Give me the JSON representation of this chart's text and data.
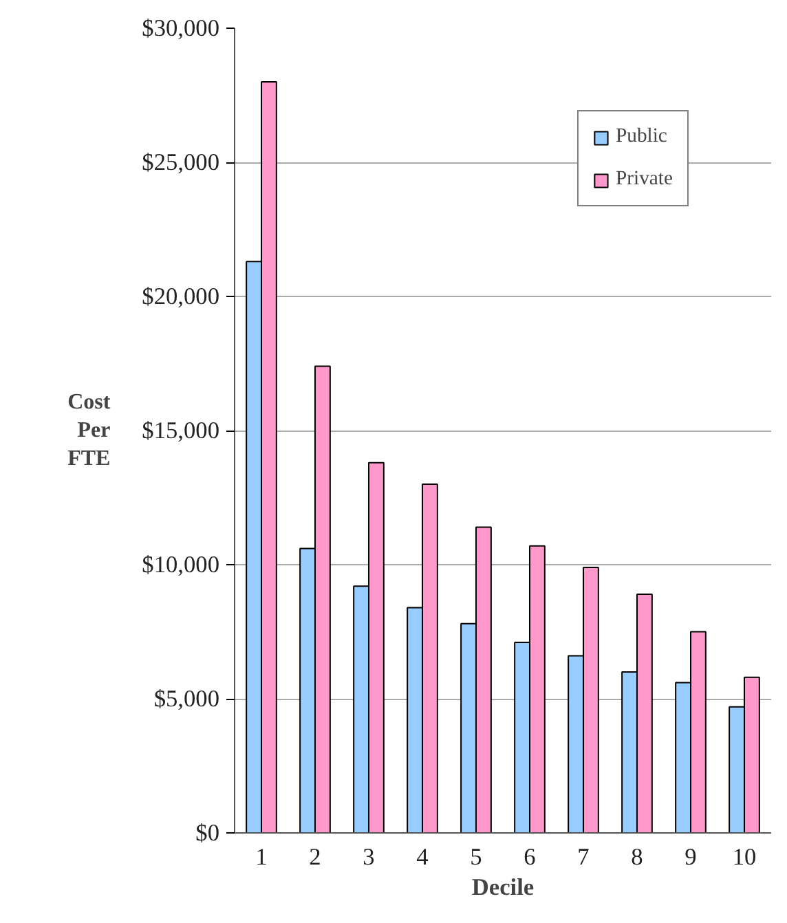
{
  "chart_data": {
    "type": "bar",
    "xlabel": "Decile",
    "ylabel": "Cost Per FTE",
    "categories": [
      "1",
      "2",
      "3",
      "4",
      "5",
      "6",
      "7",
      "8",
      "9",
      "10"
    ],
    "series": [
      {
        "name": "Public",
        "color": "#99ccff",
        "values": [
          21300,
          10600,
          9200,
          8400,
          7800,
          7100,
          6600,
          6000,
          5600,
          4700
        ]
      },
      {
        "name": "Private",
        "color": "#ff99cc",
        "values": [
          28000,
          17400,
          13800,
          13000,
          11400,
          10700,
          9900,
          8900,
          7500,
          5800
        ]
      }
    ],
    "ylim": [
      0,
      30000
    ],
    "yticks": [
      {
        "value": 0,
        "label": "$0"
      },
      {
        "value": 5000,
        "label": "$5,000"
      },
      {
        "value": 10000,
        "label": "$10,000"
      },
      {
        "value": 15000,
        "label": "$15,000"
      },
      {
        "value": 20000,
        "label": "$20,000"
      },
      {
        "value": 25000,
        "label": "$25,000"
      },
      {
        "value": 30000,
        "label": "$30,000"
      }
    ],
    "grid": "y",
    "legend": "top right"
  }
}
